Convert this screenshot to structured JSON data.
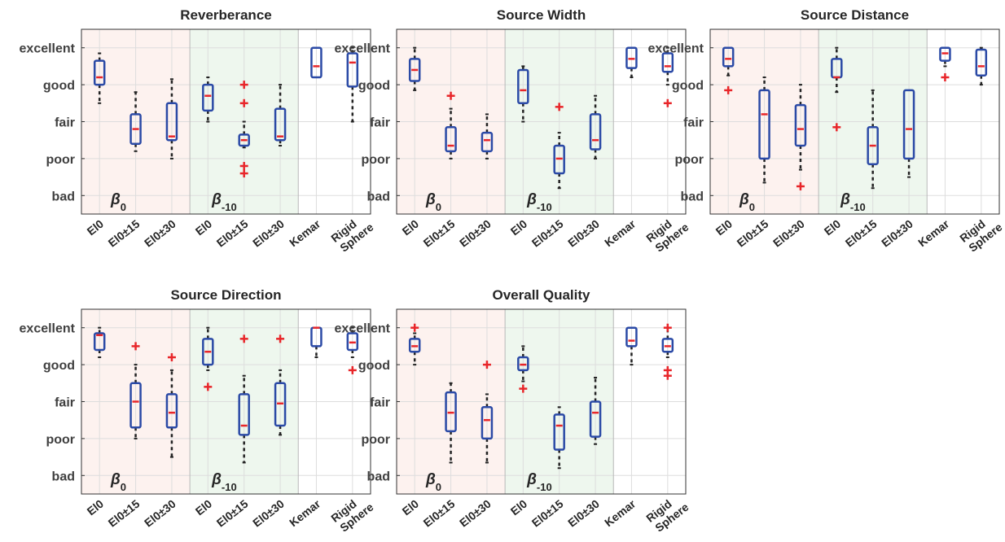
{
  "figure": {
    "y_levels": [
      "bad",
      "poor",
      "fair",
      "good",
      "excellent"
    ],
    "categories": [
      "El0",
      "El0±15",
      "El0±30",
      "El0",
      "El0±15",
      "El0±30",
      "Kemar",
      "Rigid Sphere"
    ],
    "group_labels": [
      {
        "symbol": "β",
        "sub": "0"
      },
      {
        "symbol": "β",
        "sub": "-10"
      }
    ],
    "colors": {
      "box": "#2b4aa6",
      "median": "#e8262a",
      "outlier": "#e8262a",
      "whisker": "#222222",
      "group0_band": "#fdf2ef",
      "group1_band": "#eef7ee",
      "grid": "#dddddd",
      "axis_text": "#404040"
    }
  },
  "chart_data": [
    {
      "type": "box",
      "title": "Reverberance",
      "ylim": [
        0.5,
        5.5
      ],
      "grid": true,
      "categories": [
        "El0",
        "El0±15",
        "El0±30",
        "El0",
        "El0±15",
        "El0±30",
        "Kemar",
        "Rigid Sphere"
      ],
      "boxes": [
        {
          "whisker_low": 3.5,
          "q1": 4.0,
          "median": 4.2,
          "q3": 4.65,
          "whisker_high": 4.85,
          "outliers": []
        },
        {
          "whisker_low": 2.2,
          "q1": 2.4,
          "median": 2.8,
          "q3": 3.2,
          "whisker_high": 3.8,
          "outliers": []
        },
        {
          "whisker_low": 2.0,
          "q1": 2.5,
          "median": 2.6,
          "q3": 3.5,
          "whisker_high": 4.15,
          "outliers": []
        },
        {
          "whisker_low": 3.0,
          "q1": 3.3,
          "median": 3.7,
          "q3": 4.0,
          "whisker_high": 4.2,
          "outliers": []
        },
        {
          "whisker_low": 2.3,
          "q1": 2.35,
          "median": 2.5,
          "q3": 2.65,
          "whisker_high": 3.0,
          "outliers": [
            4.0,
            3.5,
            1.8,
            1.6
          ]
        },
        {
          "whisker_low": 2.35,
          "q1": 2.5,
          "median": 2.6,
          "q3": 3.35,
          "whisker_high": 4.0,
          "outliers": []
        },
        {
          "whisker_low": 4.2,
          "q1": 4.2,
          "median": 4.5,
          "q3": 5.0,
          "whisker_high": 5.0,
          "outliers": []
        },
        {
          "whisker_low": 3.0,
          "q1": 3.95,
          "median": 4.6,
          "q3": 4.85,
          "whisker_high": 5.0,
          "outliers": []
        }
      ]
    },
    {
      "type": "box",
      "title": "Source Width",
      "ylim": [
        0.5,
        5.5
      ],
      "grid": true,
      "categories": [
        "El0",
        "El0±15",
        "El0±30",
        "El0",
        "El0±15",
        "El0±30",
        "Kemar",
        "Rigid Sphere"
      ],
      "boxes": [
        {
          "whisker_low": 3.85,
          "q1": 4.1,
          "median": 4.4,
          "q3": 4.7,
          "whisker_high": 5.0,
          "outliers": []
        },
        {
          "whisker_low": 2.0,
          "q1": 2.2,
          "median": 2.35,
          "q3": 2.85,
          "whisker_high": 3.35,
          "outliers": [
            3.7
          ]
        },
        {
          "whisker_low": 2.0,
          "q1": 2.2,
          "median": 2.5,
          "q3": 2.7,
          "whisker_high": 3.2,
          "outliers": []
        },
        {
          "whisker_low": 3.0,
          "q1": 3.5,
          "median": 3.85,
          "q3": 4.4,
          "whisker_high": 4.5,
          "outliers": []
        },
        {
          "whisker_low": 1.2,
          "q1": 1.6,
          "median": 2.0,
          "q3": 2.35,
          "whisker_high": 2.7,
          "outliers": [
            3.4
          ]
        },
        {
          "whisker_low": 2.0,
          "q1": 2.25,
          "median": 2.5,
          "q3": 3.2,
          "whisker_high": 3.7,
          "outliers": []
        },
        {
          "whisker_low": 4.2,
          "q1": 4.45,
          "median": 4.7,
          "q3": 5.0,
          "whisker_high": 5.0,
          "outliers": []
        },
        {
          "whisker_low": 4.0,
          "q1": 4.35,
          "median": 4.5,
          "q3": 4.85,
          "whisker_high": 5.0,
          "outliers": [
            3.5
          ]
        }
      ]
    },
    {
      "type": "box",
      "title": "Source Distance",
      "ylim": [
        0.5,
        5.5
      ],
      "grid": true,
      "categories": [
        "El0",
        "El0±15",
        "El0±30",
        "El0",
        "El0±15",
        "El0±30",
        "Kemar",
        "Rigid Sphere"
      ],
      "boxes": [
        {
          "whisker_low": 4.25,
          "q1": 4.5,
          "median": 4.7,
          "q3": 5.0,
          "whisker_high": 5.0,
          "outliers": [
            3.85
          ]
        },
        {
          "whisker_low": 1.35,
          "q1": 2.0,
          "median": 3.2,
          "q3": 3.85,
          "whisker_high": 4.2,
          "outliers": []
        },
        {
          "whisker_low": 1.7,
          "q1": 2.35,
          "median": 2.8,
          "q3": 3.45,
          "whisker_high": 4.0,
          "outliers": [
            1.25
          ]
        },
        {
          "whisker_low": 3.8,
          "q1": 4.2,
          "median": 4.2,
          "q3": 4.7,
          "whisker_high": 5.0,
          "outliers": [
            2.85
          ]
        },
        {
          "whisker_low": 1.2,
          "q1": 1.85,
          "median": 2.35,
          "q3": 2.85,
          "whisker_high": 3.85,
          "outliers": []
        },
        {
          "whisker_low": 1.5,
          "q1": 2.0,
          "median": 2.8,
          "q3": 3.85,
          "whisker_high": 3.85,
          "outliers": []
        },
        {
          "whisker_low": 4.5,
          "q1": 4.65,
          "median": 4.85,
          "q3": 5.0,
          "whisker_high": 5.0,
          "outliers": [
            4.2
          ]
        },
        {
          "whisker_low": 4.0,
          "q1": 4.25,
          "median": 4.5,
          "q3": 4.95,
          "whisker_high": 5.0,
          "outliers": []
        }
      ]
    },
    {
      "type": "box",
      "title": "Source Direction",
      "ylim": [
        0.5,
        5.5
      ],
      "grid": true,
      "categories": [
        "El0",
        "El0±15",
        "El0±30",
        "El0",
        "El0±15",
        "El0±30",
        "Kemar",
        "Rigid Sphere"
      ],
      "boxes": [
        {
          "whisker_low": 4.2,
          "q1": 4.4,
          "median": 4.8,
          "q3": 4.85,
          "whisker_high": 5.0,
          "outliers": []
        },
        {
          "whisker_low": 2.0,
          "q1": 2.3,
          "median": 3.0,
          "q3": 3.5,
          "whisker_high": 4.0,
          "outliers": [
            4.5
          ]
        },
        {
          "whisker_low": 1.5,
          "q1": 2.3,
          "median": 2.7,
          "q3": 3.2,
          "whisker_high": 3.85,
          "outliers": [
            4.2
          ]
        },
        {
          "whisker_low": 3.85,
          "q1": 4.0,
          "median": 4.35,
          "q3": 4.7,
          "whisker_high": 5.0,
          "outliers": [
            3.4
          ]
        },
        {
          "whisker_low": 1.35,
          "q1": 2.1,
          "median": 2.35,
          "q3": 3.2,
          "whisker_high": 3.7,
          "outliers": [
            4.7
          ]
        },
        {
          "whisker_low": 2.1,
          "q1": 2.35,
          "median": 2.95,
          "q3": 3.5,
          "whisker_high": 3.85,
          "outliers": [
            4.7
          ]
        },
        {
          "whisker_low": 4.2,
          "q1": 4.5,
          "median": 5.0,
          "q3": 5.0,
          "whisker_high": 5.0,
          "outliers": []
        },
        {
          "whisker_low": 4.2,
          "q1": 4.4,
          "median": 4.6,
          "q3": 4.85,
          "whisker_high": 5.0,
          "outliers": [
            3.85
          ]
        }
      ]
    },
    {
      "type": "box",
      "title": "Overall Quality",
      "ylim": [
        0.5,
        5.5
      ],
      "grid": true,
      "categories": [
        "El0",
        "El0±15",
        "El0±30",
        "El0",
        "El0±15",
        "El0±30",
        "Kemar",
        "Rigid Sphere"
      ],
      "boxes": [
        {
          "whisker_low": 4.0,
          "q1": 4.35,
          "median": 4.5,
          "q3": 4.7,
          "whisker_high": 4.85,
          "outliers": [
            5.0
          ]
        },
        {
          "whisker_low": 1.35,
          "q1": 2.2,
          "median": 2.7,
          "q3": 3.25,
          "whisker_high": 3.5,
          "outliers": []
        },
        {
          "whisker_low": 1.35,
          "q1": 2.0,
          "median": 2.5,
          "q3": 2.85,
          "whisker_high": 3.2,
          "outliers": [
            4.0
          ]
        },
        {
          "whisker_low": 3.55,
          "q1": 3.85,
          "median": 4.0,
          "q3": 4.2,
          "whisker_high": 4.5,
          "outliers": [
            3.35
          ]
        },
        {
          "whisker_low": 1.2,
          "q1": 1.7,
          "median": 2.35,
          "q3": 2.65,
          "whisker_high": 2.85,
          "outliers": []
        },
        {
          "whisker_low": 1.85,
          "q1": 2.05,
          "median": 2.7,
          "q3": 3.0,
          "whisker_high": 3.65,
          "outliers": []
        },
        {
          "whisker_low": 4.0,
          "q1": 4.5,
          "median": 4.65,
          "q3": 5.0,
          "whisker_high": 5.0,
          "outliers": []
        },
        {
          "whisker_low": 4.2,
          "q1": 4.35,
          "median": 4.5,
          "q3": 4.7,
          "whisker_high": 5.0,
          "outliers": [
            5.0,
            3.85,
            3.7
          ]
        }
      ]
    }
  ]
}
